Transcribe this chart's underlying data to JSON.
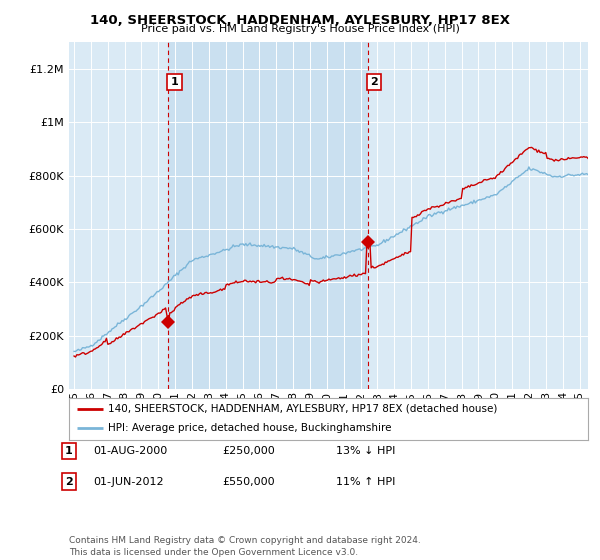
{
  "title": "140, SHEERSTOCK, HADDENHAM, AYLESBURY, HP17 8EX",
  "subtitle": "Price paid vs. HM Land Registry's House Price Index (HPI)",
  "legend_line1": "140, SHEERSTOCK, HADDENHAM, AYLESBURY, HP17 8EX (detached house)",
  "legend_line2": "HPI: Average price, detached house, Buckinghamshire",
  "annotation1_label": "1",
  "annotation1_date": "01-AUG-2000",
  "annotation1_price": "£250,000",
  "annotation1_hpi": "13% ↓ HPI",
  "annotation2_label": "2",
  "annotation2_date": "01-JUN-2012",
  "annotation2_price": "£550,000",
  "annotation2_hpi": "11% ↑ HPI",
  "footnote": "Contains HM Land Registry data © Crown copyright and database right 2024.\nThis data is licensed under the Open Government Licence v3.0.",
  "hpi_color": "#7ab5d8",
  "price_color": "#cc0000",
  "vline_color": "#cc0000",
  "background_color": "#ffffff",
  "plot_bg_color": "#daeaf5",
  "shade_color": "#c8dff0",
  "ylim": [
    0,
    1300000
  ],
  "yticks": [
    0,
    200000,
    400000,
    600000,
    800000,
    1000000,
    1200000
  ],
  "xlim_start": 1994.7,
  "xlim_end": 2025.5,
  "sale1_x": 2000.583,
  "sale1_y": 250000,
  "sale2_x": 2012.416,
  "sale2_y": 550000
}
